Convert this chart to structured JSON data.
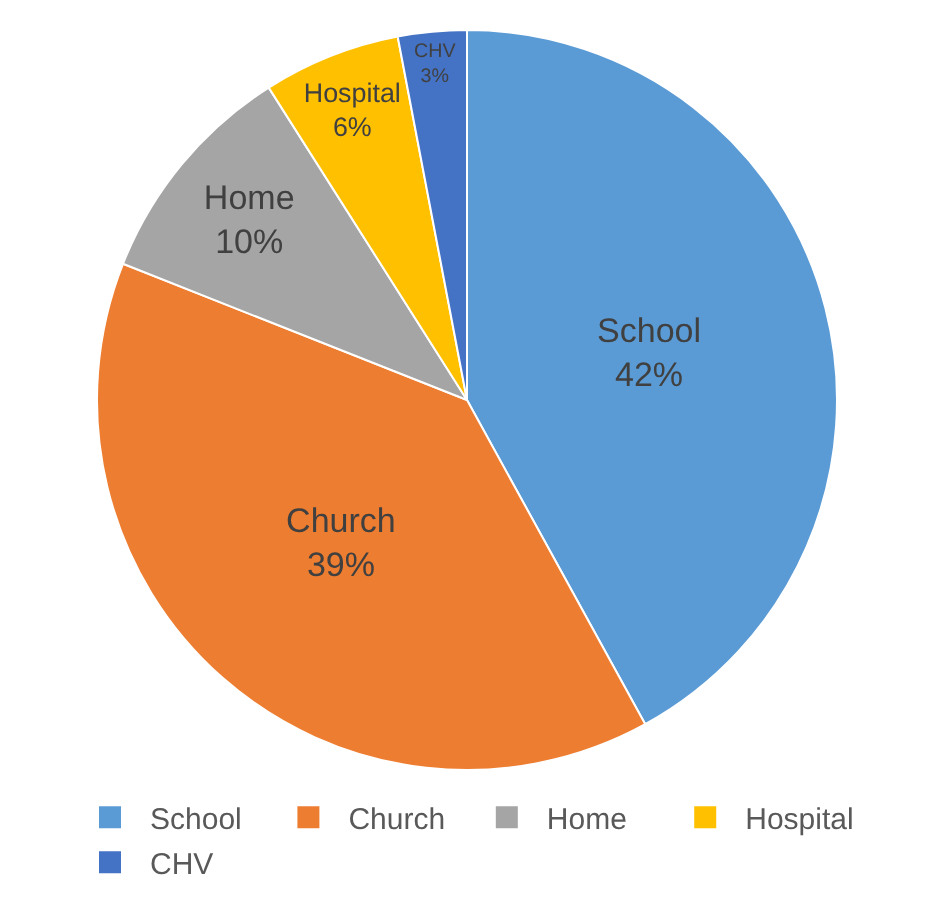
{
  "chart_data": {
    "type": "pie",
    "categories": [
      "School",
      "Church",
      "Home",
      "Hospital",
      "CHV"
    ],
    "values": [
      42,
      39,
      10,
      6,
      3
    ],
    "colors": [
      "#5b9bd5",
      "#ed7d31",
      "#a5a5a5",
      "#ffc000",
      "#4472c4"
    ],
    "value_labels": [
      "42%",
      "39%",
      "10%",
      "6%",
      "3%"
    ],
    "legend": "bottom"
  }
}
